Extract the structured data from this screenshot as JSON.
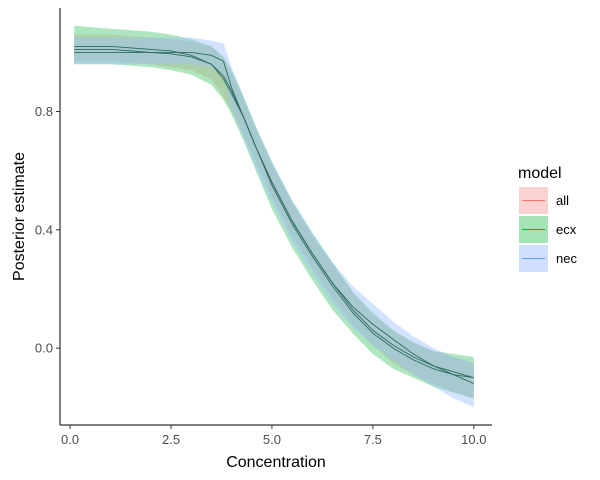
{
  "chart_data": {
    "type": "line",
    "xlabel": "Concentration",
    "ylabel": "Posterior estimate",
    "xlim": [
      -0.25,
      10.45
    ],
    "ylim": [
      -0.26,
      1.15
    ],
    "xticks": [
      0.0,
      2.5,
      5.0,
      7.5,
      10.0
    ],
    "xtick_labels": [
      "0.0",
      "2.5",
      "5.0",
      "7.5",
      "10.0"
    ],
    "yticks": [
      0.0,
      0.4,
      0.8
    ],
    "ytick_labels": [
      "0.0",
      "0.4",
      "0.8"
    ],
    "grid": false,
    "legend": {
      "title": "model",
      "position": "right"
    },
    "x": [
      0.1,
      1.0,
      2.0,
      2.5,
      3.0,
      3.5,
      3.8,
      4.0,
      4.3,
      4.6,
      5.0,
      5.5,
      6.0,
      6.5,
      7.0,
      7.5,
      8.0,
      8.5,
      9.0,
      9.5,
      10.0
    ],
    "series": [
      {
        "name": "all",
        "color": "#f8766d",
        "fill": "#f8a6a0",
        "values": [
          1.01,
          1.01,
          1.0,
          0.995,
          0.985,
          0.96,
          0.91,
          0.86,
          0.78,
          0.68,
          0.56,
          0.43,
          0.32,
          0.22,
          0.13,
          0.06,
          0.01,
          -0.03,
          -0.06,
          -0.08,
          -0.1
        ],
        "upper": [
          1.06,
          1.06,
          1.05,
          1.045,
          1.035,
          1.02,
          0.98,
          0.93,
          0.84,
          0.74,
          0.62,
          0.49,
          0.38,
          0.28,
          0.19,
          0.11,
          0.06,
          0.02,
          -0.01,
          -0.03,
          -0.05
        ],
        "lower": [
          0.97,
          0.97,
          0.96,
          0.95,
          0.94,
          0.91,
          0.85,
          0.8,
          0.72,
          0.63,
          0.51,
          0.38,
          0.27,
          0.17,
          0.08,
          0.01,
          -0.05,
          -0.09,
          -0.12,
          -0.15,
          -0.17
        ]
      },
      {
        "name": "ecx",
        "color": "#00ba38",
        "fill": "#4cc870",
        "values": [
          1.02,
          1.02,
          1.01,
          1.005,
          0.99,
          0.96,
          0.92,
          0.87,
          0.78,
          0.68,
          0.55,
          0.42,
          0.31,
          0.21,
          0.12,
          0.05,
          0.0,
          -0.04,
          -0.07,
          -0.09,
          -0.1
        ],
        "upper": [
          1.09,
          1.08,
          1.07,
          1.06,
          1.045,
          1.02,
          0.985,
          0.94,
          0.85,
          0.75,
          0.63,
          0.5,
          0.39,
          0.29,
          0.19,
          0.12,
          0.06,
          0.02,
          -0.01,
          -0.02,
          -0.03
        ],
        "lower": [
          0.96,
          0.96,
          0.95,
          0.94,
          0.925,
          0.89,
          0.84,
          0.79,
          0.7,
          0.6,
          0.47,
          0.34,
          0.23,
          0.13,
          0.05,
          -0.02,
          -0.07,
          -0.1,
          -0.13,
          -0.15,
          -0.17
        ]
      },
      {
        "name": "nec",
        "color": "#619cff",
        "fill": "#9dc0ff",
        "values": [
          1.0,
          1.0,
          1.0,
          1.0,
          1.0,
          0.99,
          0.97,
          0.88,
          0.78,
          0.68,
          0.56,
          0.43,
          0.32,
          0.22,
          0.14,
          0.08,
          0.03,
          -0.02,
          -0.06,
          -0.09,
          -0.12
        ],
        "upper": [
          1.05,
          1.05,
          1.05,
          1.05,
          1.05,
          1.04,
          1.03,
          0.95,
          0.85,
          0.75,
          0.63,
          0.5,
          0.39,
          0.29,
          0.21,
          0.15,
          0.09,
          0.04,
          0.0,
          -0.03,
          -0.05
        ],
        "lower": [
          0.96,
          0.96,
          0.96,
          0.96,
          0.96,
          0.95,
          0.92,
          0.81,
          0.71,
          0.61,
          0.49,
          0.36,
          0.25,
          0.15,
          0.07,
          0.01,
          -0.04,
          -0.09,
          -0.13,
          -0.17,
          -0.2
        ]
      }
    ]
  }
}
